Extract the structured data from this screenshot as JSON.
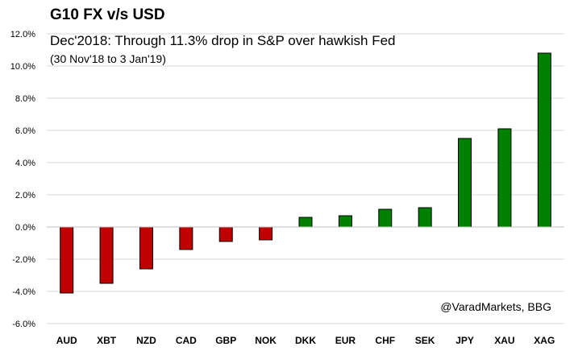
{
  "chart_data": {
    "type": "bar",
    "title": "G10 FX v/s USD",
    "subtitle": "Dec'2018: Through 11.3% drop in S&P over hawkish Fed",
    "date_range": "(30 Nov'18 to 3 Jan'19)",
    "source": "@VaradMarkets, BBG",
    "categories": [
      "AUD",
      "XBT",
      "NZD",
      "CAD",
      "GBP",
      "NOK",
      "DKK",
      "EUR",
      "CHF",
      "SEK",
      "JPY",
      "XAU",
      "XAG"
    ],
    "values": [
      -4.1,
      -3.5,
      -2.6,
      -1.4,
      -0.9,
      -0.8,
      0.6,
      0.7,
      1.1,
      1.2,
      5.5,
      6.1,
      10.8
    ],
    "ylim": [
      -6,
      12
    ],
    "yticks": [
      "-6.0%",
      "-4.0%",
      "-2.0%",
      "0.0%",
      "2.0%",
      "4.0%",
      "6.0%",
      "8.0%",
      "10.0%",
      "12.0%"
    ],
    "ytick_values": [
      -6,
      -4,
      -2,
      0,
      2,
      4,
      6,
      8,
      10,
      12
    ],
    "grid": true,
    "colors": {
      "negative": "#c00000",
      "positive": "#008000",
      "grid": "#d9d9d9",
      "border": "#000000"
    }
  }
}
